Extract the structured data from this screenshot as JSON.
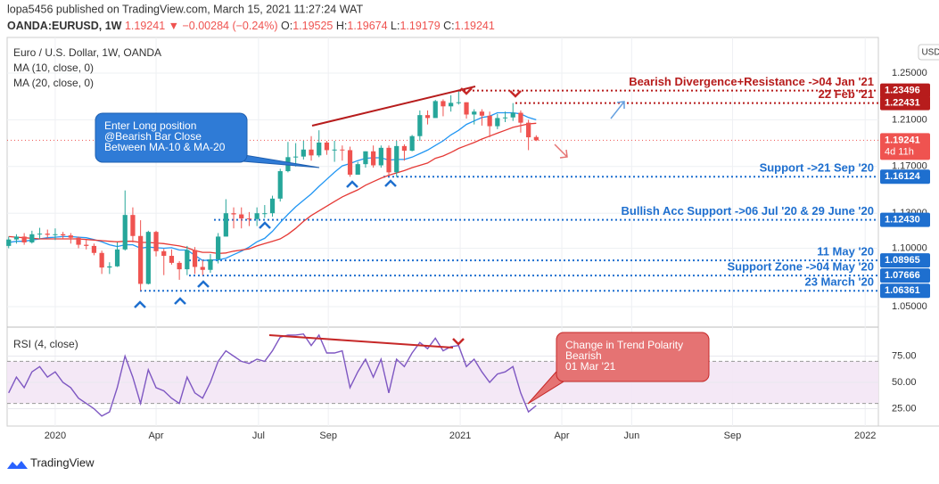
{
  "header": {
    "published": "lopa5456 published on TradingView.com, March 15, 2021 11:27:24 WAT",
    "symbol": "OANDA:EURUSD, 1W",
    "price": "1.19241",
    "change": "▼ −0.00284 (−0.24%)",
    "ohlc_labels": [
      "O:",
      "H:",
      "L:",
      "C:"
    ],
    "ohlc_values": [
      "1.19525",
      "1.19674",
      "1.19179",
      "1.19241"
    ]
  },
  "footer": {
    "brand": "TradingView"
  },
  "chart_data": {
    "type": "candlestick",
    "title": "Euro / U.S. Dollar, 1W, OANDA",
    "currency": "USD",
    "x": [
      -6,
      -5,
      -4,
      -3,
      -2,
      -1,
      0,
      1,
      2,
      3,
      4,
      5,
      6,
      7,
      8,
      9,
      10,
      11,
      12,
      13,
      14,
      15,
      16,
      17,
      18,
      19,
      20,
      21,
      22,
      23,
      24,
      25,
      26,
      27,
      28,
      29,
      30,
      31,
      32,
      33,
      34,
      35,
      36,
      37,
      38,
      39,
      40,
      41,
      42,
      43,
      44,
      45,
      46,
      47,
      48,
      49,
      50,
      51,
      52,
      53,
      54,
      55,
      56,
      57,
      58,
      59,
      60,
      61,
      62
    ],
    "open": [
      1.102,
      1.1075,
      1.11,
      1.105,
      1.112,
      1.1125,
      1.1115,
      1.112,
      1.111,
      1.109,
      1.103,
      1.102,
      1.096,
      1.0835,
      1.0845,
      1.099,
      1.1285,
      1.1105,
      1.0695,
      1.114,
      1.0975,
      1.0935,
      1.0875,
      1.082,
      1.0985,
      1.084,
      1.0815,
      1.0905,
      1.11,
      1.13,
      1.129,
      1.1255,
      1.125,
      1.13,
      1.13,
      1.1425,
      1.166,
      1.178,
      1.1785,
      1.1845,
      1.1795,
      1.1905,
      1.184,
      1.1845,
      1.184,
      1.163,
      1.172,
      1.183,
      1.171,
      1.186,
      1.165,
      1.1875,
      1.1835,
      1.196,
      1.214,
      1.2115,
      1.226,
      1.2215,
      1.2245,
      1.225,
      1.2145,
      1.217,
      1.2135,
      1.2045,
      1.2115,
      1.212,
      1.216,
      1.2075,
      1.19525
    ],
    "high": [
      1.11,
      1.112,
      1.113,
      1.115,
      1.1175,
      1.116,
      1.117,
      1.114,
      1.113,
      1.11,
      1.107,
      1.104,
      1.098,
      1.088,
      1.105,
      1.1495,
      1.135,
      1.124,
      1.115,
      1.115,
      1.0995,
      1.099,
      1.089,
      1.102,
      1.101,
      1.09,
      1.095,
      1.113,
      1.142,
      1.135,
      1.135,
      1.131,
      1.135,
      1.137,
      1.145,
      1.168,
      1.191,
      1.19,
      1.192,
      1.196,
      1.201,
      1.192,
      1.192,
      1.188,
      1.187,
      1.174,
      1.183,
      1.188,
      1.188,
      1.188,
      1.192,
      1.189,
      1.197,
      1.218,
      1.218,
      1.227,
      1.2275,
      1.231,
      1.235,
      1.225,
      1.219,
      1.219,
      1.217,
      1.215,
      1.217,
      1.2243,
      1.218,
      1.21,
      1.19674
    ],
    "low": [
      1.1,
      1.104,
      1.103,
      1.104,
      1.108,
      1.109,
      1.107,
      1.108,
      1.104,
      1.1,
      1.099,
      1.094,
      1.078,
      1.078,
      1.084,
      1.098,
      1.105,
      1.0636,
      1.069,
      1.093,
      1.077,
      1.086,
      1.073,
      1.077,
      1.078,
      1.077,
      1.079,
      1.087,
      1.11,
      1.117,
      1.117,
      1.119,
      1.119,
      1.126,
      1.127,
      1.14,
      1.165,
      1.17,
      1.176,
      1.175,
      1.178,
      1.18,
      1.174,
      1.175,
      1.1612,
      1.163,
      1.169,
      1.169,
      1.169,
      1.162,
      1.161,
      1.175,
      1.183,
      1.192,
      1.206,
      1.212,
      1.213,
      1.217,
      1.223,
      1.211,
      1.206,
      1.205,
      1.195,
      1.202,
      1.208,
      1.209,
      1.199,
      1.184,
      1.19179
    ],
    "close": [
      1.1075,
      1.11,
      1.105,
      1.112,
      1.1125,
      1.1115,
      1.112,
      1.111,
      1.109,
      1.103,
      1.102,
      1.096,
      1.0835,
      1.0845,
      1.099,
      1.1285,
      1.1105,
      1.0695,
      1.114,
      1.0975,
      1.0935,
      1.0875,
      1.082,
      1.0985,
      1.084,
      1.0815,
      1.0905,
      1.11,
      1.13,
      1.129,
      1.1255,
      1.125,
      1.13,
      1.13,
      1.1425,
      1.166,
      1.178,
      1.1785,
      1.1845,
      1.1795,
      1.1905,
      1.184,
      1.1845,
      1.184,
      1.163,
      1.172,
      1.183,
      1.171,
      1.186,
      1.165,
      1.1875,
      1.1835,
      1.196,
      1.214,
      1.2115,
      1.226,
      1.2215,
      1.2245,
      1.225,
      1.2145,
      1.217,
      1.2135,
      1.2045,
      1.2115,
      1.212,
      1.216,
      1.2075,
      1.195,
      1.19241
    ],
    "up_color": "#26a69a",
    "down_color": "#ef5350",
    "series": [
      {
        "name": "MA (10, close, 0)",
        "color": "#2196f3",
        "values": [
          1.105,
          1.106,
          1.106,
          1.107,
          1.108,
          1.109,
          1.1095,
          1.11,
          1.11,
          1.1095,
          1.109,
          1.1075,
          1.1055,
          1.103,
          1.1015,
          1.103,
          1.103,
          1.1,
          1.101,
          1.1005,
          1.1,
          1.1005,
          1.0985,
          1.0985,
          1.094,
          1.0895,
          1.09,
          1.09,
          1.0915,
          1.0945,
          1.0975,
          1.101,
          1.1055,
          1.1085,
          1.1145,
          1.122,
          1.129,
          1.1355,
          1.141,
          1.1465,
          1.153,
          1.159,
          1.165,
          1.1705,
          1.1725,
          1.175,
          1.177,
          1.1775,
          1.1775,
          1.1755,
          1.176,
          1.176,
          1.178,
          1.181,
          1.184,
          1.188,
          1.192,
          1.197,
          1.201,
          1.206,
          1.209,
          1.212,
          1.213,
          1.216,
          1.216,
          1.216,
          1.215,
          1.212,
          1.21
        ]
      },
      {
        "name": "MA (20, close, 0)",
        "color": "#e53935",
        "values": [
          1.11,
          1.1095,
          1.109,
          1.1085,
          1.108,
          1.108,
          1.108,
          1.108,
          1.108,
          1.108,
          1.1075,
          1.107,
          1.1065,
          1.106,
          1.1055,
          1.106,
          1.106,
          1.105,
          1.105,
          1.1045,
          1.104,
          1.103,
          1.102,
          1.1005,
          1.098,
          1.0965,
          1.0965,
          1.0955,
          1.096,
          1.0975,
          1.0985,
          1.0995,
          1.102,
          1.104,
          1.106,
          1.108,
          1.112,
          1.117,
          1.123,
          1.128,
          1.132,
          1.136,
          1.14,
          1.144,
          1.147,
          1.15,
          1.154,
          1.157,
          1.16,
          1.1625,
          1.1645,
          1.1665,
          1.169,
          1.171,
          1.173,
          1.177,
          1.179,
          1.182,
          1.1855,
          1.188,
          1.1905,
          1.1935,
          1.196,
          1.1985,
          1.201,
          1.2035,
          1.205,
          1.2065,
          1.207
        ]
      }
    ],
    "xlim": [
      -6.2,
      106.1
    ],
    "xticks": [
      {
        "value": 0,
        "label": "2020"
      },
      {
        "value": 13,
        "label": "Apr"
      },
      {
        "value": 26.2,
        "label": "Jul"
      },
      {
        "value": 35.2,
        "label": "Sep"
      },
      {
        "value": 52.2,
        "label": "2021"
      },
      {
        "value": 65.3,
        "label": "Apr"
      },
      {
        "value": 74.3,
        "label": "Jun"
      },
      {
        "value": 87.3,
        "label": "Sep"
      },
      {
        "value": 104.4,
        "label": "2022"
      }
    ],
    "ylim": [
      1.034,
      1.2805
    ],
    "yticks": [
      {
        "value": 1.05,
        "label": "1.05000"
      },
      {
        "value": 1.1,
        "label": "1.10000"
      },
      {
        "value": 1.13,
        "label": "1.13000"
      },
      {
        "value": 1.17,
        "label": "1.17000"
      },
      {
        "value": 1.21,
        "label": "1.21000"
      },
      {
        "value": 1.25,
        "label": "1.25000"
      }
    ],
    "last_price": {
      "value": 1.19241,
      "label": "1.19241",
      "countdown": "4d 11h",
      "color": "#ef5350"
    },
    "levels": [
      {
        "value": 1.23496,
        "label": "1.23496",
        "text": "Bearish Divergence+Resistance ->04 Jan '21",
        "color": "#b71c1c"
      },
      {
        "value": 1.22431,
        "label": "1.22431",
        "text": "22 Feb '21",
        "color": "#b71c1c"
      },
      {
        "value": 1.16124,
        "label": "1.16124",
        "text": "Support ->21 Sep '20",
        "color": "#1e6fcf"
      },
      {
        "value": 1.1243,
        "label": "1.12430",
        "text": "Bullish Acc Support ->06 Jul '20 & 29 June '20",
        "color": "#1e6fcf"
      },
      {
        "value": 1.08965,
        "label": "1.08965",
        "text": "11 May '20",
        "color": "#1e6fcf"
      },
      {
        "value": 1.07666,
        "label": "1.07666",
        "text": "Support Zone ->04 May '20",
        "color": "#1e6fcf"
      },
      {
        "value": 1.06361,
        "label": "1.06361",
        "text": "23 March '20",
        "color": "#1e6fcf"
      }
    ],
    "callouts": [
      {
        "lines": [
          "Enter Long position",
          "@Bearish Bar Close",
          "Between MA-10 & MA-20"
        ]
      },
      {
        "lines": [
          "Change in Trend Polarity",
          "Bearish",
          "01 Mar '21"
        ]
      }
    ],
    "rsi": {
      "name": "RSI (4, close)",
      "color": "#7e57c2",
      "values": [
        40,
        55,
        45,
        60,
        65,
        55,
        60,
        50,
        45,
        35,
        30,
        25,
        18,
        22,
        45,
        75,
        55,
        30,
        62,
        45,
        42,
        35,
        30,
        55,
        40,
        35,
        50,
        70,
        80,
        75,
        70,
        68,
        72,
        70,
        80,
        93,
        95,
        95,
        96,
        85,
        95,
        78,
        78,
        80,
        45,
        60,
        72,
        55,
        72,
        40,
        72,
        65,
        78,
        88,
        82,
        92,
        80,
        84,
        85,
        65,
        72,
        60,
        50,
        58,
        60,
        65,
        40,
        22,
        28
      ],
      "ylim": [
        8.5,
        100
      ],
      "yticks": [
        {
          "value": 25,
          "label": "25.00"
        },
        {
          "value": 50,
          "label": "50.00"
        },
        {
          "value": 75,
          "label": "75.00"
        }
      ],
      "band": [
        30,
        70
      ]
    }
  }
}
